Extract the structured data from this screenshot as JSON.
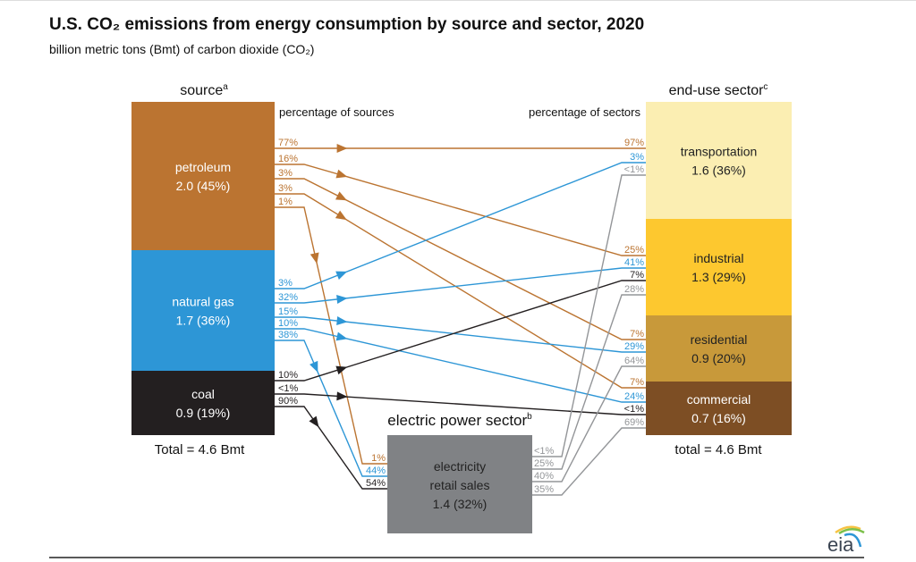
{
  "title": "U.S. CO₂ emissions from energy consumption by source and sector, 2020",
  "subtitle": "billion metric tons (Bmt) of carbon dioxide (CO₂)",
  "source_header": "source",
  "source_sup": "a",
  "sector_header": "end-use sector",
  "sector_sup": "c",
  "pct_sources_label": "percentage of sources",
  "pct_sectors_label": "percentage of sectors",
  "sources": [
    {
      "name": "petroleum",
      "value": "2.0  (45%)",
      "color": "#bb7431"
    },
    {
      "name": "natural gas",
      "value": "1.7  (36%)",
      "color": "#2d96d6"
    },
    {
      "name": "coal",
      "value": "0.9  (19%)",
      "color": "#231f20"
    }
  ],
  "sectors": [
    {
      "name": "transportation",
      "value": "1.6  (36%)",
      "color": "#fbeeb2"
    },
    {
      "name": "industrial",
      "value": "1.3  (29%)",
      "color": "#fdc82f"
    },
    {
      "name": "residential",
      "value": "0.9  (20%)",
      "color": "#c8993a"
    },
    {
      "name": "commercial",
      "value": "0.7  (16%)",
      "color": "#7d4e24"
    }
  ],
  "electric": {
    "header": "electric power sector",
    "sup": "b",
    "line1": "electricity",
    "line2": "retail sales",
    "value": "1.4  (32%)",
    "color": "#808285"
  },
  "source_total": "Total = 4.6 Bmt",
  "sector_total": "total = 4.6 Bmt",
  "flows": [
    {
      "from": "petroleum",
      "to": "transportation",
      "from_pct": "77%",
      "to_pct": "97%"
    },
    {
      "from": "petroleum",
      "to": "industrial",
      "from_pct": "16%",
      "to_pct": "25%"
    },
    {
      "from": "petroleum",
      "to": "residential",
      "from_pct": "3%",
      "to_pct": "7%"
    },
    {
      "from": "petroleum",
      "to": "commercial",
      "from_pct": "3%",
      "to_pct": "7%"
    },
    {
      "from": "petroleum",
      "to": "electric power",
      "from_pct": "1%",
      "to_pct": "1%"
    },
    {
      "from": "natural gas",
      "to": "transportation",
      "from_pct": "3%",
      "to_pct": "3%"
    },
    {
      "from": "natural gas",
      "to": "industrial",
      "from_pct": "32%",
      "to_pct": "41%"
    },
    {
      "from": "natural gas",
      "to": "residential",
      "from_pct": "15%",
      "to_pct": "29%"
    },
    {
      "from": "natural gas",
      "to": "commercial",
      "from_pct": "10%",
      "to_pct": "24%"
    },
    {
      "from": "natural gas",
      "to": "electric power",
      "from_pct": "38%",
      "to_pct": "44%"
    },
    {
      "from": "coal",
      "to": "industrial",
      "from_pct": "10%",
      "to_pct": "7%"
    },
    {
      "from": "coal",
      "to": "commercial",
      "from_pct": "<1%",
      "to_pct": "<1%"
    },
    {
      "from": "coal",
      "to": "electric power",
      "from_pct": "90%",
      "to_pct": "54%"
    },
    {
      "from": "electric power",
      "to": "transportation",
      "from_pct": "<1%",
      "to_pct": "<1%"
    },
    {
      "from": "electric power",
      "to": "industrial",
      "from_pct": "25%",
      "to_pct": "28%"
    },
    {
      "from": "electric power",
      "to": "residential",
      "from_pct": "40%",
      "to_pct": "64%"
    },
    {
      "from": "electric power",
      "to": "commercial",
      "from_pct": "35%",
      "to_pct": "69%"
    }
  ],
  "logo": "eia"
}
